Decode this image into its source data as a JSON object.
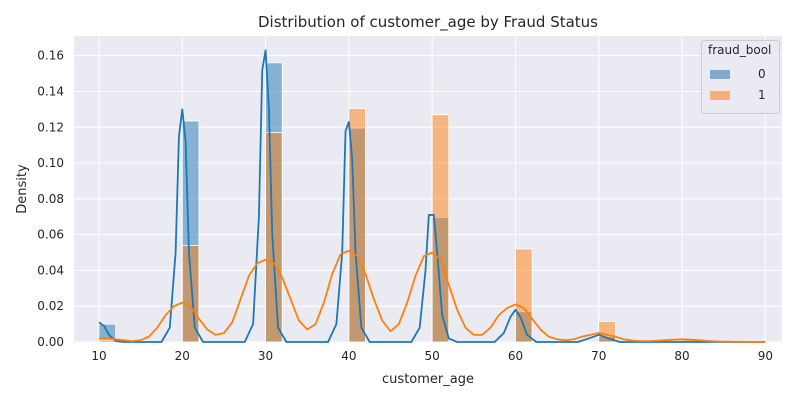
{
  "chart_data": {
    "type": "histogram",
    "title": "Distribution of customer_age by Fraud Status",
    "xlabel": "customer_age",
    "ylabel": "Density",
    "xlim": [
      7,
      92
    ],
    "ylim": [
      0,
      0.171
    ],
    "xticks": [
      10,
      20,
      30,
      40,
      50,
      60,
      70,
      80,
      90
    ],
    "yticks": [
      0.0,
      0.02,
      0.04,
      0.06,
      0.08,
      0.1,
      0.12,
      0.14,
      0.16
    ],
    "ytick_labels": [
      "0.00",
      "0.02",
      "0.04",
      "0.06",
      "0.08",
      "0.10",
      "0.12",
      "0.14",
      "0.16"
    ],
    "grid": true,
    "legend": {
      "title": "fraud_bool",
      "placement": "top-right"
    },
    "bin_width": 2,
    "series": [
      {
        "name": "0",
        "color": "#1f77b4",
        "bins": [
          {
            "x0": 10,
            "x1": 12,
            "y": 0.01
          },
          {
            "x0": 20,
            "x1": 22,
            "y": 0.1235
          },
          {
            "x0": 30,
            "x1": 32,
            "y": 0.156
          },
          {
            "x0": 40,
            "x1": 42,
            "y": 0.1195
          },
          {
            "x0": 50,
            "x1": 52,
            "y": 0.0695
          },
          {
            "x0": 60,
            "x1": 62,
            "y": 0.017
          },
          {
            "x0": 70,
            "x1": 72,
            "y": 0.003
          },
          {
            "x0": 80,
            "x1": 82,
            "y": 0.0005
          }
        ],
        "kde": [
          [
            10,
            0.011
          ],
          [
            10.6,
            0.009
          ],
          [
            11.2,
            0.004
          ],
          [
            12,
            0.0005
          ],
          [
            13,
            0.0
          ],
          [
            17.5,
            0.0
          ],
          [
            18.5,
            0.008
          ],
          [
            19.2,
            0.05
          ],
          [
            19.6,
            0.115
          ],
          [
            20.0,
            0.13
          ],
          [
            20.4,
            0.112
          ],
          [
            20.8,
            0.05
          ],
          [
            21.5,
            0.008
          ],
          [
            22.5,
            0.0
          ],
          [
            27.5,
            0.0
          ],
          [
            28.5,
            0.01
          ],
          [
            29.2,
            0.07
          ],
          [
            29.6,
            0.152
          ],
          [
            30.0,
            0.163
          ],
          [
            30.4,
            0.13
          ],
          [
            30.8,
            0.06
          ],
          [
            31.5,
            0.008
          ],
          [
            32.5,
            0.0
          ],
          [
            37.5,
            0.0
          ],
          [
            38.5,
            0.01
          ],
          [
            39.2,
            0.05
          ],
          [
            39.6,
            0.118
          ],
          [
            40.0,
            0.123
          ],
          [
            40.4,
            0.102
          ],
          [
            40.8,
            0.05
          ],
          [
            41.5,
            0.008
          ],
          [
            42.5,
            0.0
          ],
          [
            47.5,
            0.0
          ],
          [
            48.5,
            0.008
          ],
          [
            49.2,
            0.04
          ],
          [
            49.6,
            0.071
          ],
          [
            50.2,
            0.071
          ],
          [
            50.6,
            0.05
          ],
          [
            51.2,
            0.015
          ],
          [
            52,
            0.002
          ],
          [
            53,
            0.0
          ],
          [
            57.5,
            0.0
          ],
          [
            58.6,
            0.005
          ],
          [
            59.4,
            0.014
          ],
          [
            60.0,
            0.018
          ],
          [
            60.6,
            0.014
          ],
          [
            61.4,
            0.004
          ],
          [
            62.5,
            0.0
          ],
          [
            67.5,
            0.0
          ],
          [
            68.8,
            0.002
          ],
          [
            70.0,
            0.004
          ],
          [
            71.2,
            0.002
          ],
          [
            72.5,
            0.0
          ],
          [
            90,
            0.0
          ]
        ]
      },
      {
        "name": "1",
        "color": "#ff7f0e",
        "bins": [
          {
            "x0": 10,
            "x1": 12,
            "y": 0.001
          },
          {
            "x0": 20,
            "x1": 22,
            "y": 0.054
          },
          {
            "x0": 30,
            "x1": 32,
            "y": 0.117
          },
          {
            "x0": 40,
            "x1": 42,
            "y": 0.1305
          },
          {
            "x0": 50,
            "x1": 52,
            "y": 0.127
          },
          {
            "x0": 60,
            "x1": 62,
            "y": 0.052
          },
          {
            "x0": 70,
            "x1": 72,
            "y": 0.0115
          },
          {
            "x0": 80,
            "x1": 82,
            "y": 0.0015
          }
        ],
        "kde": [
          [
            10,
            0.002
          ],
          [
            11,
            0.002
          ],
          [
            12,
            0.0015
          ],
          [
            13,
            0.001
          ],
          [
            14,
            0.0005
          ],
          [
            15,
            0.001
          ],
          [
            16,
            0.003
          ],
          [
            17,
            0.008
          ],
          [
            18,
            0.015
          ],
          [
            19,
            0.02
          ],
          [
            20,
            0.022
          ],
          [
            21,
            0.02
          ],
          [
            22,
            0.013
          ],
          [
            23,
            0.007
          ],
          [
            24,
            0.004
          ],
          [
            25,
            0.005
          ],
          [
            26,
            0.011
          ],
          [
            27,
            0.024
          ],
          [
            28,
            0.037
          ],
          [
            29,
            0.044
          ],
          [
            30,
            0.046
          ],
          [
            31,
            0.044
          ],
          [
            32,
            0.036
          ],
          [
            33,
            0.024
          ],
          [
            34,
            0.012
          ],
          [
            35,
            0.007
          ],
          [
            36,
            0.01
          ],
          [
            37,
            0.022
          ],
          [
            38,
            0.038
          ],
          [
            39,
            0.049
          ],
          [
            40,
            0.051
          ],
          [
            41,
            0.048
          ],
          [
            42,
            0.038
          ],
          [
            43,
            0.024
          ],
          [
            44,
            0.012
          ],
          [
            45,
            0.006
          ],
          [
            46,
            0.01
          ],
          [
            47,
            0.022
          ],
          [
            48,
            0.037
          ],
          [
            49,
            0.048
          ],
          [
            50,
            0.05
          ],
          [
            51,
            0.046
          ],
          [
            52,
            0.032
          ],
          [
            53,
            0.018
          ],
          [
            54,
            0.008
          ],
          [
            55,
            0.004
          ],
          [
            56,
            0.004
          ],
          [
            57,
            0.008
          ],
          [
            58,
            0.015
          ],
          [
            59,
            0.019
          ],
          [
            60,
            0.021
          ],
          [
            61,
            0.019
          ],
          [
            62,
            0.013
          ],
          [
            63,
            0.007
          ],
          [
            64,
            0.003
          ],
          [
            65,
            0.0015
          ],
          [
            66,
            0.001
          ],
          [
            67,
            0.0015
          ],
          [
            68,
            0.003
          ],
          [
            69,
            0.004
          ],
          [
            70,
            0.005
          ],
          [
            71,
            0.004
          ],
          [
            72,
            0.003
          ],
          [
            73,
            0.0015
          ],
          [
            74,
            0.0008
          ],
          [
            75,
            0.0005
          ],
          [
            76,
            0.0005
          ],
          [
            77,
            0.0007
          ],
          [
            78,
            0.001
          ],
          [
            79,
            0.0013
          ],
          [
            80,
            0.0015
          ],
          [
            81,
            0.0013
          ],
          [
            82,
            0.001
          ],
          [
            83,
            0.0006
          ],
          [
            84,
            0.0003
          ],
          [
            86,
            0.0001
          ],
          [
            90,
            0.0
          ]
        ]
      }
    ]
  }
}
